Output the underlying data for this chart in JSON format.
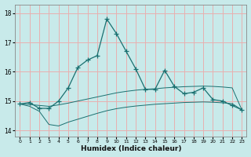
{
  "xlabel": "Humidex (Indice chaleur)",
  "ylabel": "",
  "bg_color": "#c8eaea",
  "grid_color": "#e8b0b0",
  "line_color": "#1a7070",
  "xlim": [
    -0.5,
    23.5
  ],
  "ylim": [
    13.8,
    18.3
  ],
  "yticks": [
    14,
    15,
    16,
    17,
    18
  ],
  "xticks": [
    0,
    1,
    2,
    3,
    4,
    5,
    6,
    7,
    8,
    9,
    10,
    11,
    12,
    13,
    14,
    15,
    16,
    17,
    18,
    19,
    20,
    21,
    22,
    23
  ],
  "series1_x": [
    0,
    1,
    2,
    3,
    4,
    5,
    6,
    7,
    8,
    9,
    10,
    11,
    12,
    13,
    14,
    15,
    16,
    17,
    18,
    19,
    20,
    21,
    22,
    23
  ],
  "series1_y": [
    14.9,
    14.95,
    14.75,
    14.75,
    15.0,
    15.45,
    16.15,
    16.4,
    16.55,
    17.8,
    17.3,
    16.7,
    16.1,
    15.4,
    15.4,
    16.05,
    15.5,
    15.25,
    15.3,
    15.45,
    15.05,
    15.0,
    14.85,
    14.7
  ],
  "series2_x": [
    0,
    1,
    2,
    3,
    4,
    5,
    6,
    7,
    8,
    9,
    10,
    11,
    12,
    13,
    14,
    15,
    16,
    17,
    18,
    19,
    20,
    21,
    22,
    23
  ],
  "series2_y": [
    14.9,
    14.88,
    14.85,
    14.82,
    14.87,
    14.93,
    15.0,
    15.07,
    15.14,
    15.21,
    15.28,
    15.33,
    15.37,
    15.4,
    15.42,
    15.45,
    15.47,
    15.49,
    15.5,
    15.51,
    15.5,
    15.48,
    15.45,
    14.7
  ],
  "series3_x": [
    0,
    1,
    2,
    3,
    4,
    5,
    6,
    7,
    8,
    9,
    10,
    11,
    12,
    13,
    14,
    15,
    16,
    17,
    18,
    19,
    20,
    21,
    22,
    23
  ],
  "series3_y": [
    14.9,
    14.82,
    14.65,
    14.2,
    14.15,
    14.28,
    14.38,
    14.48,
    14.58,
    14.67,
    14.74,
    14.79,
    14.83,
    14.86,
    14.89,
    14.91,
    14.93,
    14.95,
    14.96,
    14.97,
    14.96,
    14.94,
    14.91,
    14.7
  ]
}
